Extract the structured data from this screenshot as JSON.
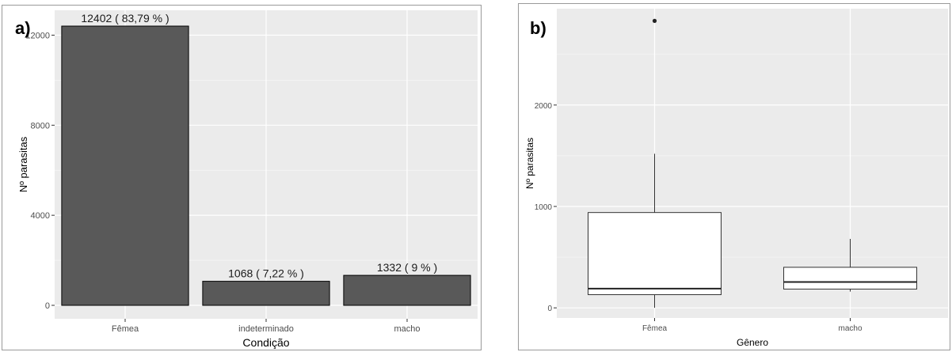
{
  "panel_a": {
    "letter": "a)"
  },
  "panel_b": {
    "letter": "b)"
  },
  "chart_data": [
    {
      "type": "bar",
      "categories": [
        "Fêmea",
        "indeterminado",
        "macho"
      ],
      "values": [
        12402,
        1068,
        1332
      ],
      "data_labels": [
        "12402 ( 83,79 % )",
        "1068 ( 7,22 % )",
        "1332 ( 9 % )"
      ],
      "xlabel": "Condição",
      "ylabel": "Nº parasitas",
      "ylim": [
        0,
        12402
      ],
      "yticks": [
        0,
        4000,
        8000,
        12000
      ],
      "ytick_labels": [
        "0",
        "4000",
        "8000",
        "12000"
      ],
      "grid": true,
      "bar_color": "#595959",
      "panel_background": "#ebebeb"
    },
    {
      "type": "boxplot",
      "categories": [
        "Fêmea",
        "macho"
      ],
      "boxes": [
        {
          "category": "Fêmea",
          "whisker_low": 0,
          "q1": 130,
          "median": 190,
          "q3": 940,
          "whisker_high": 1520,
          "outliers": [
            2830
          ]
        },
        {
          "category": "macho",
          "whisker_low": 160,
          "q1": 185,
          "median": 255,
          "q3": 400,
          "whisker_high": 680,
          "outliers": []
        }
      ],
      "xlabel": "Gênero",
      "ylabel": "Nº parasitas",
      "ylim": [
        -100,
        2950
      ],
      "yticks": [
        0,
        1000,
        2000
      ],
      "ytick_labels": [
        "0",
        "1000",
        "2000"
      ],
      "grid": true,
      "panel_background": "#ebebeb"
    }
  ]
}
